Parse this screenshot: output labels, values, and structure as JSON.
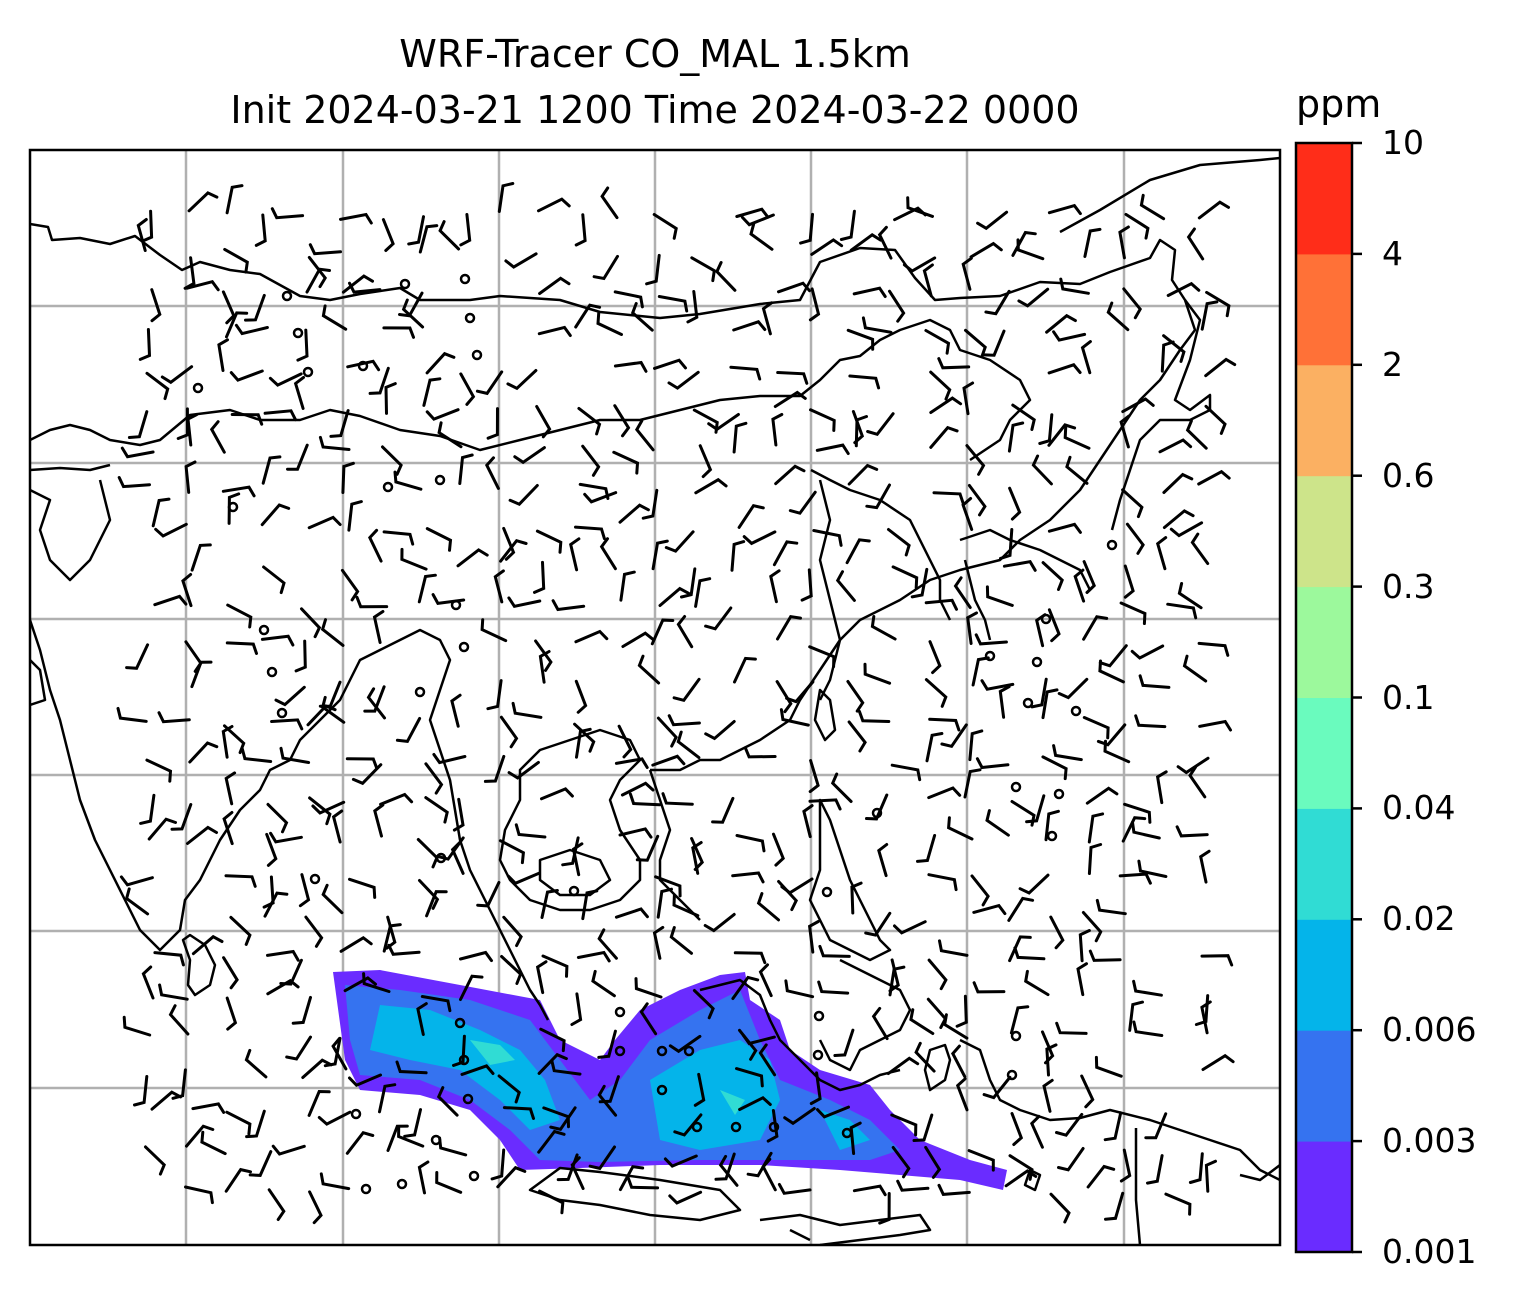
{
  "title_line1": "WRF-Tracer CO_MAL 1.5km",
  "title_line2": "Init 2024-03-21 1200 Time 2024-03-22 0000",
  "colorbar": {
    "unit": "ppm",
    "levels": [
      "0.001",
      "0.003",
      "0.006",
      "0.02",
      "0.04",
      "0.1",
      "0.3",
      "0.6",
      "2",
      "4",
      "10"
    ],
    "colors": [
      "#6a2cff",
      "#3573f0",
      "#04b4ea",
      "#30dcd4",
      "#6afbbe",
      "#9cf99c",
      "#cde48a",
      "#fbb062",
      "#ff7137",
      "#ff2d19"
    ]
  },
  "map": {
    "gridlines": true,
    "plume_colors": {
      "low": "#6a2cff",
      "mid": "#3573f0",
      "high": "#04b4ea",
      "peak": "#30dcd4"
    },
    "calm_markers": [
      [
        287,
        296
      ],
      [
        298,
        333
      ],
      [
        405,
        284
      ],
      [
        465,
        279
      ],
      [
        470,
        318
      ],
      [
        477,
        355
      ],
      [
        363,
        366
      ],
      [
        308,
        372
      ],
      [
        198,
        388
      ],
      [
        233,
        507
      ],
      [
        388,
        487
      ],
      [
        440,
        480
      ],
      [
        456,
        605
      ],
      [
        264,
        630
      ],
      [
        272,
        672
      ],
      [
        282,
        713
      ],
      [
        420,
        692
      ],
      [
        464,
        647
      ],
      [
        990,
        656
      ],
      [
        1037,
        662
      ],
      [
        1028,
        703
      ],
      [
        1076,
        711
      ],
      [
        1046,
        619
      ],
      [
        1112,
        545
      ],
      [
        877,
        813
      ],
      [
        1016,
        787
      ],
      [
        1059,
        794
      ],
      [
        1052,
        836
      ],
      [
        315,
        879
      ],
      [
        441,
        858
      ],
      [
        574,
        891
      ],
      [
        827,
        892
      ],
      [
        460,
        1023
      ],
      [
        464,
        1060
      ],
      [
        620,
        1012
      ],
      [
        662,
        1051
      ],
      [
        620,
        1051
      ],
      [
        689,
        1051
      ],
      [
        662,
        1090
      ],
      [
        819,
        1016
      ],
      [
        818,
        1055
      ],
      [
        1016,
        1036
      ],
      [
        1012,
        1075
      ],
      [
        356,
        1114
      ],
      [
        468,
        1099
      ],
      [
        436,
        1140
      ],
      [
        474,
        1176
      ],
      [
        366,
        1189
      ],
      [
        402,
        1184
      ],
      [
        697,
        1127
      ],
      [
        736,
        1127
      ],
      [
        774,
        1127
      ],
      [
        847,
        1133
      ]
    ]
  }
}
